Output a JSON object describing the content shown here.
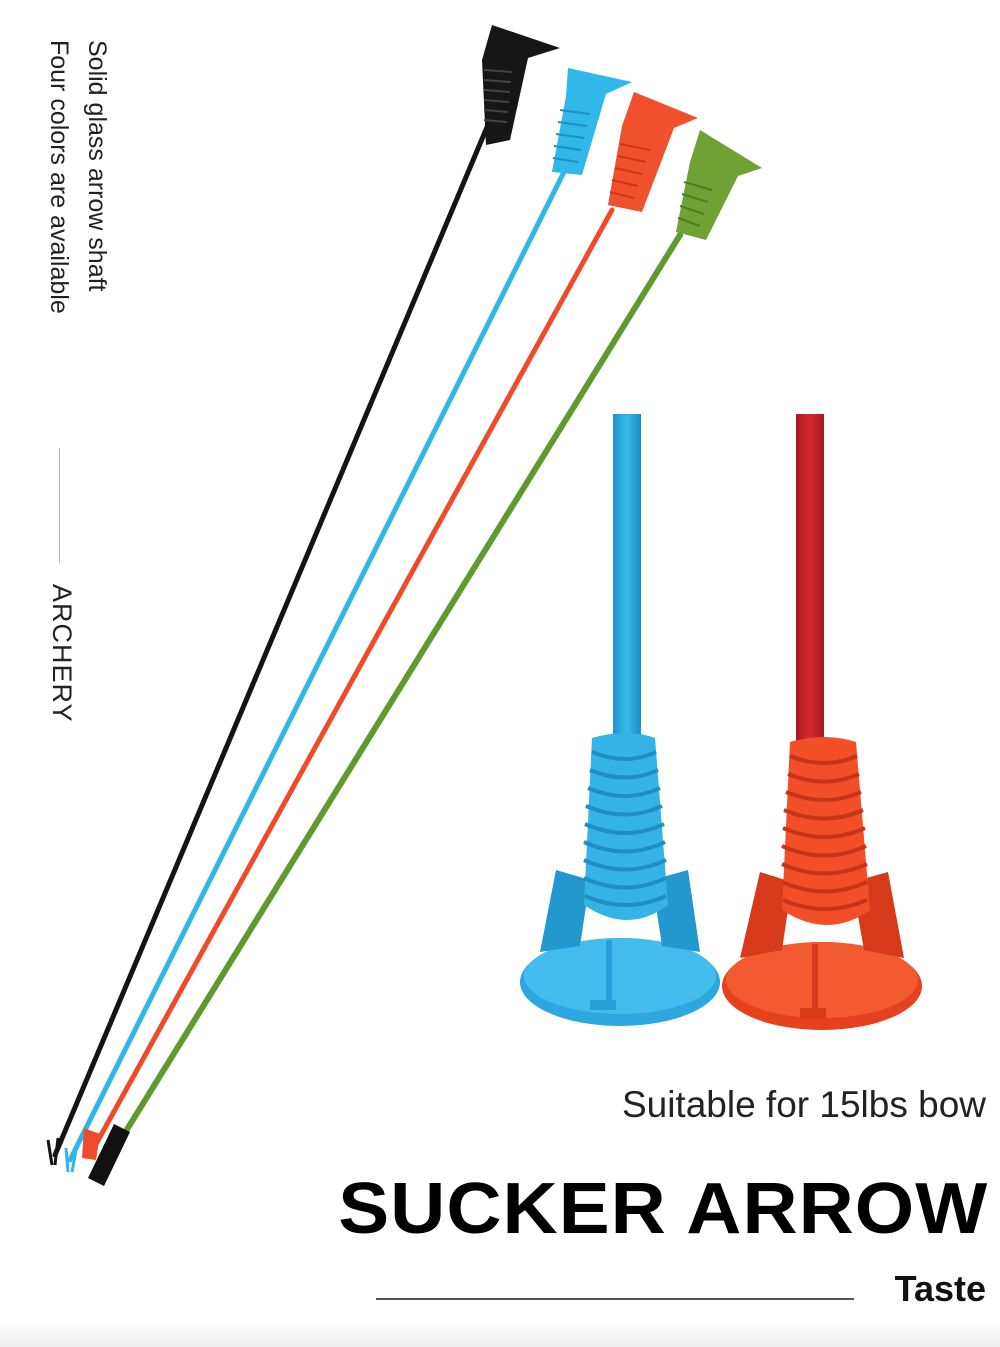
{
  "side_text": {
    "line1": "Solid glass arrow shaft",
    "line2": "Four colors are available",
    "brand": "ARCHERY"
  },
  "subtitle": "Suitable for 15lbs bow",
  "title": "SUCKER ARROW",
  "tagline": "Taste",
  "colors": {
    "black": "#141414",
    "blue": "#2fb6ea",
    "red": "#ef4a2a",
    "green": "#5e9a2e",
    "dark_red": "#c3242c"
  }
}
